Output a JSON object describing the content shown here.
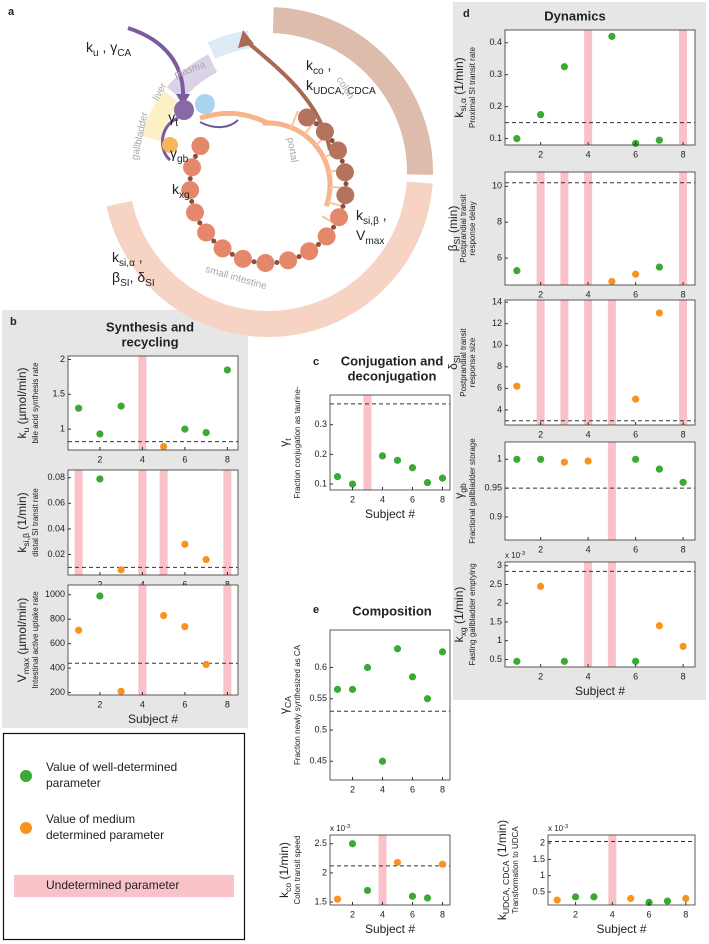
{
  "diagram": {
    "letter": "a",
    "labels": [
      {
        "lines": [
          [
            {
              "text": "k"
            },
            {
              "text": "u",
              "sub": true
            },
            {
              "text": " , γ"
            },
            {
              "text": "CA",
              "sub": true
            }
          ]
        ]
      },
      {
        "lines": [
          [
            {
              "text": "γ"
            },
            {
              "text": "t",
              "sub": true
            }
          ]
        ]
      },
      {
        "lines": [
          [
            {
              "text": "γ"
            },
            {
              "text": "gb",
              "sub": true
            }
          ]
        ]
      },
      {
        "lines": [
          [
            {
              "text": "k"
            },
            {
              "text": "xg",
              "sub": true
            }
          ]
        ]
      },
      {
        "lines": [
          [
            {
              "text": "k"
            },
            {
              "text": "co",
              "sub": true
            },
            {
              "text": " ,"
            }
          ],
          [
            {
              "text": "k"
            },
            {
              "text": "UDCA, CDCA",
              "sub": true
            }
          ]
        ]
      },
      {
        "lines": [
          [
            {
              "text": "k"
            },
            {
              "text": "si,β",
              "sub": true
            },
            {
              "text": " ,"
            }
          ],
          [
            {
              "text": "V"
            },
            {
              "text": "max",
              "sub": true
            }
          ]
        ]
      },
      {
        "lines": [
          [
            {
              "text": "k"
            },
            {
              "text": "si,α",
              "sub": true
            },
            {
              "text": " ,"
            }
          ],
          [
            {
              "text": "β"
            },
            {
              "text": "SI",
              "sub": true
            },
            {
              "text": ", δ"
            },
            {
              "text": "SI",
              "sub": true
            }
          ]
        ]
      }
    ],
    "regions": [
      "liver",
      "plasma",
      "gallbladder",
      "portal",
      "small intestine",
      "colon"
    ]
  },
  "panels": [
    {
      "letter": "b",
      "title": [
        "Synthesis and",
        "recycling"
      ]
    },
    {
      "letter": "c",
      "title": [
        "Conjugation and",
        "deconjugation"
      ]
    },
    {
      "letter": "d",
      "title": [
        "Dynamics"
      ]
    },
    {
      "letter": "e",
      "title": [
        "Composition"
      ]
    }
  ],
  "legend": [
    {
      "label": [
        "Value of well-determined",
        "parameter"
      ],
      "color": "#3aa935"
    },
    {
      "label": [
        "Value of medium",
        "determined parameter"
      ],
      "color": "#f7931e"
    },
    {
      "label": [
        "Undetermined parameter"
      ],
      "color": "#f9c1c8"
    }
  ],
  "chart_data": [
    {
      "type": "scatter",
      "ylabel": [
        {
          "text": "k"
        },
        {
          "text": "u",
          "sub": true
        },
        {
          "text": " (µmol/min)"
        }
      ],
      "description": [
        "bile acid synthesis rate"
      ],
      "x": [
        1,
        2,
        3,
        4,
        5,
        6,
        7,
        8
      ],
      "xlim": [
        0.5,
        8.5
      ],
      "xticks": [
        2,
        4,
        6,
        8
      ],
      "ylim": [
        0.7,
        2.05
      ],
      "yticks": [
        1,
        1.5,
        2
      ],
      "reference": 0.82,
      "well": [
        1.3,
        0.93,
        1.33,
        null,
        null,
        1.0,
        0.95,
        1.85
      ],
      "medium": [
        null,
        null,
        null,
        null,
        0.75,
        null,
        null,
        null
      ],
      "undetermined": [
        4
      ]
    },
    {
      "type": "scatter",
      "ylabel": [
        {
          "text": "k"
        },
        {
          "text": "si,β",
          "sub": true
        },
        {
          "text": " (1/min)"
        }
      ],
      "description": [
        "distal SI transit rate"
      ],
      "x": [
        1,
        2,
        3,
        4,
        5,
        6,
        7,
        8
      ],
      "xlim": [
        0.5,
        8.5
      ],
      "xticks": [
        2,
        4,
        6,
        8
      ],
      "ylim": [
        0.004,
        0.086
      ],
      "yticks": [
        0.02,
        0.04,
        0.06,
        0.08
      ],
      "reference": 0.01,
      "well": [
        null,
        0.079,
        null,
        null,
        null,
        null,
        null,
        null
      ],
      "medium": [
        null,
        null,
        0.008,
        null,
        null,
        0.028,
        0.016,
        null
      ],
      "undetermined": [
        1,
        4,
        5,
        8
      ]
    },
    {
      "type": "scatter",
      "ylabel": [
        {
          "text": "V"
        },
        {
          "text": "max",
          "sub": true
        },
        {
          "text": " (µmol/min)"
        }
      ],
      "description": [
        "Intestinal active uptake rate"
      ],
      "x": [
        1,
        2,
        3,
        4,
        5,
        6,
        7,
        8
      ],
      "xlim": [
        0.5,
        8.5
      ],
      "xticks": [
        2,
        4,
        6,
        8
      ],
      "ylim": [
        180,
        1080
      ],
      "yticks": [
        200,
        400,
        600,
        800,
        1000
      ],
      "reference": 440,
      "well": [
        null,
        990,
        null,
        null,
        null,
        null,
        null,
        null
      ],
      "medium": [
        710,
        null,
        210,
        null,
        830,
        740,
        430,
        null
      ],
      "undetermined": [
        4,
        8
      ],
      "xlabel": "Subject #"
    },
    {
      "type": "scatter",
      "ylabel": [
        {
          "text": "γ"
        },
        {
          "text": "t",
          "sub": true
        }
      ],
      "description": [
        "Fraction conjugation as taurine-"
      ],
      "x": [
        1,
        2,
        3,
        4,
        5,
        6,
        7,
        8
      ],
      "xlim": [
        0.5,
        8.5
      ],
      "xticks": [
        2,
        4,
        6,
        8
      ],
      "ylim": [
        0.08,
        0.4
      ],
      "yticks": [
        0.1,
        0.2,
        0.3
      ],
      "reference": 0.37,
      "well": [
        0.125,
        0.1,
        null,
        0.195,
        0.18,
        0.155,
        0.105,
        0.12
      ],
      "medium": [
        null,
        null,
        null,
        null,
        null,
        null,
        null,
        null
      ],
      "undetermined": [
        3
      ],
      "xlabel": "Subject #"
    },
    {
      "type": "scatter",
      "ylabel": [
        {
          "text": "γ"
        },
        {
          "text": "CA",
          "sub": true
        }
      ],
      "description": [
        "Fraction newly synthesized as CA"
      ],
      "x": [
        1,
        2,
        3,
        4,
        5,
        6,
        7,
        8
      ],
      "xlim": [
        0.5,
        8.5
      ],
      "xticks": [
        2,
        4,
        6,
        8
      ],
      "ylim": [
        0.42,
        0.66
      ],
      "yticks": [
        0.45,
        0.5,
        0.55,
        0.6
      ],
      "reference": 0.53,
      "well": [
        0.565,
        0.565,
        0.6,
        0.45,
        0.63,
        0.585,
        0.55,
        0.625
      ],
      "medium": [
        null,
        null,
        null,
        null,
        null,
        null,
        null,
        null
      ],
      "undetermined": []
    },
    {
      "type": "scatter",
      "ylabel": [
        {
          "text": "k"
        },
        {
          "text": "co",
          "sub": true
        },
        {
          "text": " (1/min)"
        }
      ],
      "description": [
        "Colon transit speed"
      ],
      "exponent": [
        {
          "text": "x 10"
        },
        {
          "text": "-3",
          "sup": true
        }
      ],
      "x": [
        1,
        2,
        3,
        4,
        5,
        6,
        7,
        8
      ],
      "xlim": [
        0.5,
        8.5
      ],
      "xticks": [
        2,
        4,
        6,
        8
      ],
      "ylim": [
        1.45,
        2.65
      ],
      "yticks": [
        1.5,
        2,
        2.5
      ],
      "reference": 2.12,
      "well": [
        null,
        2.5,
        1.7,
        null,
        null,
        1.6,
        1.57,
        null
      ],
      "medium": [
        1.55,
        null,
        null,
        null,
        2.18,
        null,
        null,
        2.15
      ],
      "undetermined": [
        4
      ],
      "xlabel": "Subject #"
    },
    {
      "type": "scatter",
      "ylabel": [
        {
          "text": "k"
        },
        {
          "text": "UDCA, CDCA",
          "sub": true
        },
        {
          "text": " (1/min)"
        }
      ],
      "description": [
        "Transformation to UDCA"
      ],
      "exponent": [
        {
          "text": "x 10"
        },
        {
          "text": "-3",
          "sup": true
        }
      ],
      "x": [
        1,
        2,
        3,
        4,
        5,
        6,
        7,
        8
      ],
      "xlim": [
        0.5,
        8.5
      ],
      "xticks": [
        2,
        4,
        6,
        8
      ],
      "ylim": [
        0.1,
        2.25
      ],
      "yticks": [
        0.5,
        1,
        1.5,
        2
      ],
      "reference": 2.05,
      "well": [
        null,
        0.35,
        0.35,
        null,
        null,
        0.18,
        0.22,
        null
      ],
      "medium": [
        0.25,
        null,
        null,
        null,
        0.3,
        null,
        null,
        0.3
      ],
      "undetermined": [
        4
      ],
      "xlabel": "Subject #"
    },
    {
      "type": "scatter",
      "ylabel": [
        {
          "text": "k"
        },
        {
          "text": "si,α",
          "sub": true
        },
        {
          "text": " (1/min)"
        }
      ],
      "description": [
        "Proximal SI transit rate"
      ],
      "x": [
        1,
        2,
        3,
        4,
        5,
        6,
        7,
        8
      ],
      "xlim": [
        0.5,
        8.5
      ],
      "xticks": [
        2,
        4,
        6,
        8
      ],
      "ylim": [
        0.08,
        0.44
      ],
      "yticks": [
        0.1,
        0.2,
        0.3,
        0.4
      ],
      "reference": 0.15,
      "well": [
        0.1,
        0.175,
        0.325,
        null,
        0.42,
        0.085,
        0.095,
        null
      ],
      "medium": [
        null,
        null,
        null,
        null,
        null,
        null,
        null,
        null
      ],
      "undetermined": [
        4,
        8
      ]
    },
    {
      "type": "scatter",
      "ylabel": [
        {
          "text": "β"
        },
        {
          "text": "SI",
          "sub": true
        },
        {
          "text": " (min)"
        }
      ],
      "description": [
        "Postprandial transit",
        "response delay"
      ],
      "x": [
        1,
        2,
        3,
        4,
        5,
        6,
        7,
        8
      ],
      "xlim": [
        0.5,
        8.5
      ],
      "xticks": [
        2,
        4,
        6,
        8
      ],
      "ylim": [
        4.5,
        10.8
      ],
      "yticks": [
        6,
        8,
        10
      ],
      "reference": 10.2,
      "well": [
        5.3,
        null,
        null,
        null,
        null,
        null,
        5.5,
        null
      ],
      "medium": [
        null,
        null,
        null,
        null,
        4.7,
        5.1,
        null,
        null
      ],
      "undetermined": [
        2,
        3,
        4,
        8
      ]
    },
    {
      "type": "scatter",
      "ylabel": [
        {
          "text": "δ"
        },
        {
          "text": "SI",
          "sub": true
        }
      ],
      "description": [
        "Postprandial transit",
        "response size"
      ],
      "x": [
        1,
        2,
        3,
        4,
        5,
        6,
        7,
        8
      ],
      "xlim": [
        0.5,
        8.5
      ],
      "xticks": [
        2,
        4,
        6,
        8
      ],
      "ylim": [
        2.6,
        14.2
      ],
      "yticks": [
        4,
        6,
        8,
        10,
        12,
        14
      ],
      "reference": 3,
      "well": [
        null,
        null,
        null,
        null,
        null,
        null,
        null,
        null
      ],
      "medium": [
        6.2,
        null,
        null,
        null,
        null,
        5.0,
        13,
        null
      ],
      "undetermined": [
        2,
        3,
        4,
        5,
        8
      ]
    },
    {
      "type": "scatter",
      "ylabel": [
        {
          "text": "γ"
        },
        {
          "text": "gb",
          "sub": true
        }
      ],
      "description": [
        "Fractional gallbladder storage"
      ],
      "x": [
        1,
        2,
        3,
        4,
        5,
        6,
        7,
        8
      ],
      "xlim": [
        0.5,
        8.5
      ],
      "xticks": [
        2,
        4,
        6,
        8
      ],
      "ylim": [
        0.86,
        1.03
      ],
      "yticks": [
        0.9,
        0.95,
        1
      ],
      "reference": 0.95,
      "well": [
        1,
        1,
        null,
        null,
        null,
        1,
        0.983,
        0.96
      ],
      "medium": [
        null,
        null,
        0.995,
        0.997,
        null,
        null,
        null,
        null
      ],
      "undetermined": [
        5
      ]
    },
    {
      "type": "scatter",
      "ylabel": [
        {
          "text": "k"
        },
        {
          "text": "xg",
          "sub": true
        },
        {
          "text": " (1/min)"
        }
      ],
      "description": [
        "Fasting gallbladder emptying"
      ],
      "exponent": [
        {
          "text": "x 10"
        },
        {
          "text": "-3",
          "sup": true
        }
      ],
      "x": [
        1,
        2,
        3,
        4,
        5,
        6,
        7,
        8
      ],
      "xlim": [
        0.5,
        8.5
      ],
      "xticks": [
        2,
        4,
        6,
        8
      ],
      "ylim": [
        0.3,
        3.1
      ],
      "yticks": [
        0.5,
        1,
        1.5,
        2,
        2.5,
        3
      ],
      "reference": 2.85,
      "well": [
        0.45,
        null,
        0.45,
        null,
        null,
        0.45,
        null,
        null
      ],
      "medium": [
        null,
        2.45,
        null,
        null,
        null,
        null,
        1.4,
        0.85
      ],
      "undetermined": [
        4,
        5
      ],
      "xlabel": "Subject #"
    }
  ]
}
